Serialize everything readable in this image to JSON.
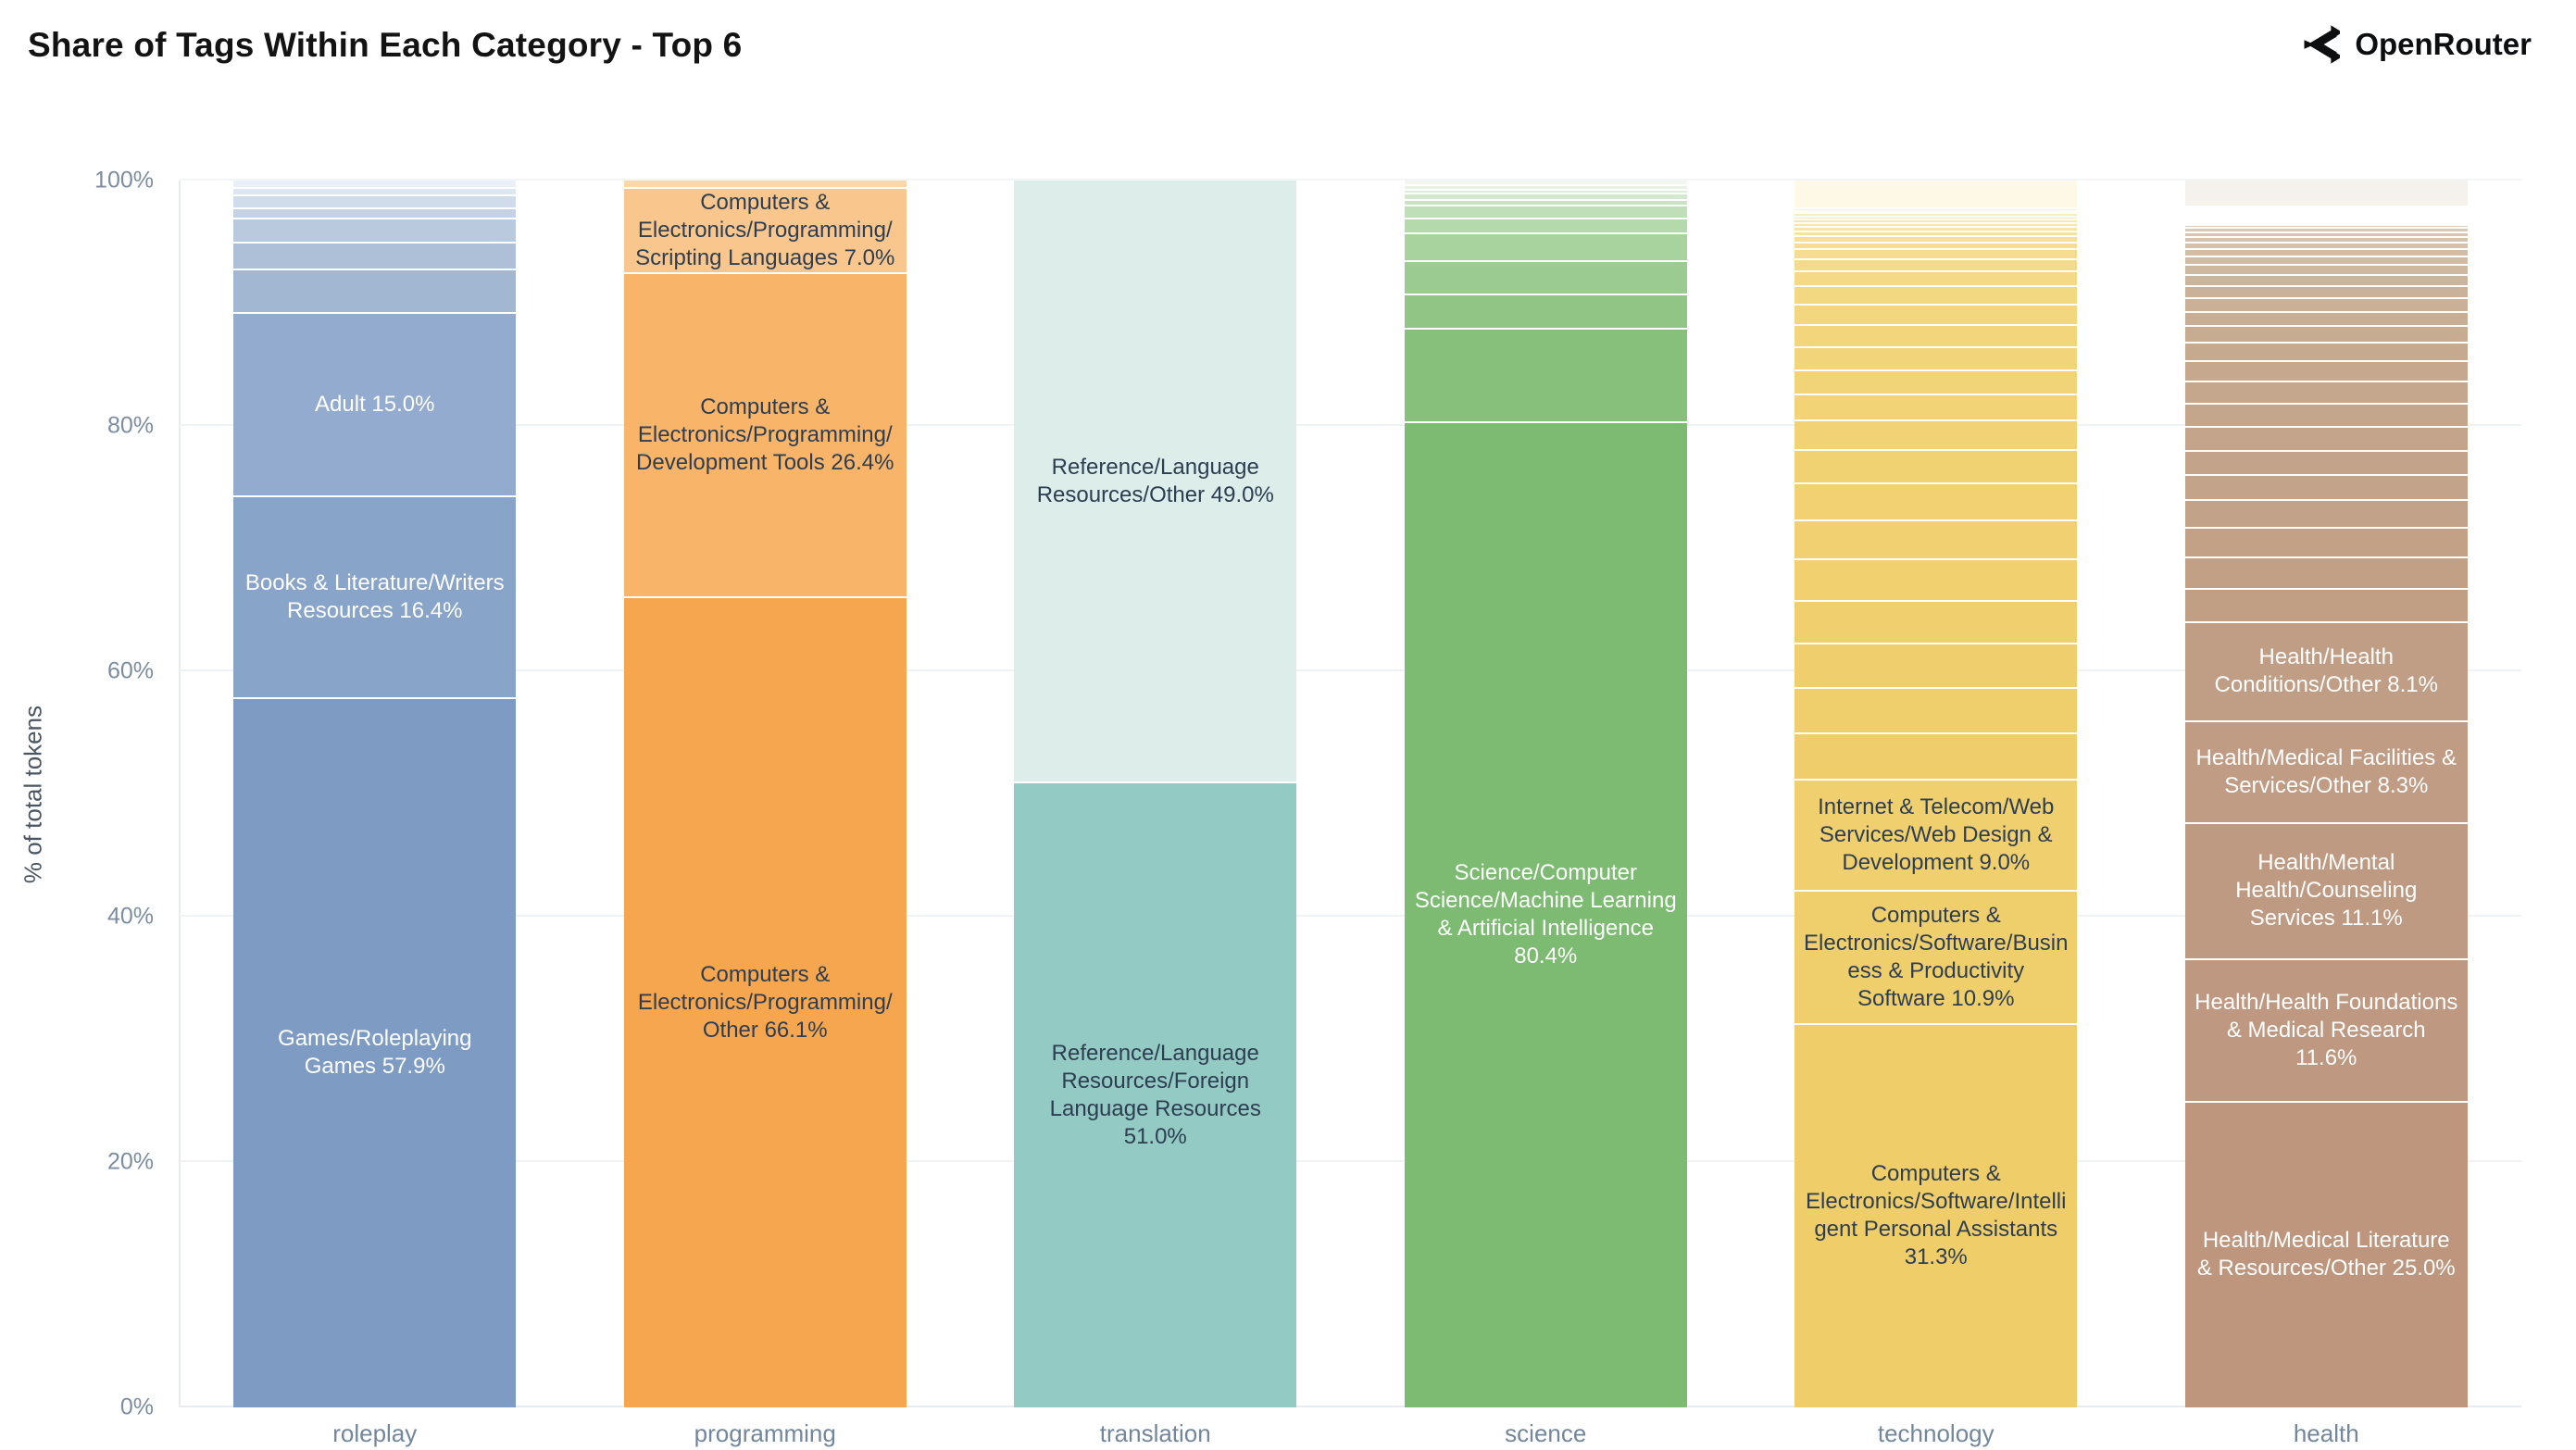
{
  "header": {
    "title": "Share of Tags Within Each Category - Top 6",
    "brand": "OpenRouter"
  },
  "colors": {
    "background": "#ffffff",
    "axis_text": "#7b8da1",
    "category_text": "#72869c",
    "dark_label_text": "#2e3e52",
    "light_label_text": "#ffffff",
    "gridline": "#f0f3f6"
  },
  "chart_data": {
    "type": "bar",
    "stacked": true,
    "orientation": "vertical",
    "title": "Share of Tags Within Each Category - Top 6",
    "xlabel": "",
    "ylabel": "% of total tokens",
    "ylim": [
      0,
      100
    ],
    "grid": true,
    "legend": false,
    "yticks": [
      {
        "v": 0,
        "label": "0%"
      },
      {
        "v": 20,
        "label": "20%"
      },
      {
        "v": 40,
        "label": "40%"
      },
      {
        "v": 60,
        "label": "60%"
      },
      {
        "v": 80,
        "label": "80%"
      },
      {
        "v": 100,
        "label": "100%"
      }
    ],
    "categories": [
      "roleplay",
      "programming",
      "translation",
      "science",
      "technology",
      "health"
    ],
    "note": "segments listed top-to-bottom; value = percent of total tokens; unnamed segments are unlabeled small tags",
    "bars": [
      {
        "category": "roleplay",
        "segments": [
          {
            "value": 0.5,
            "color": "#eaf0f7"
          },
          {
            "value": 0.6,
            "color": "#dde7f1"
          },
          {
            "value": 1.1,
            "color": "#d1dcea"
          },
          {
            "value": 0.8,
            "color": "#c5d2e4"
          },
          {
            "value": 2.0,
            "color": "#b9c9de"
          },
          {
            "value": 2.2,
            "color": "#aec0d8"
          },
          {
            "value": 3.5,
            "color": "#a2b7d2"
          },
          {
            "name": "Adult",
            "value": 15.0,
            "color": "#92abce",
            "text_color": "#ffffff"
          },
          {
            "name": "Books & Literature/Writers Resources",
            "value": 16.4,
            "color": "#89a4c9",
            "text_color": "#ffffff"
          },
          {
            "name": "Games/Roleplaying Games",
            "value": 57.9,
            "color": "#7e9bc4",
            "text_color": "#ffffff"
          }
        ]
      },
      {
        "category": "programming",
        "segments": [
          {
            "value": 0.5,
            "color": "#fbd8ab"
          },
          {
            "name": "Computers & Electronics/Programming/Scripting Languages",
            "value": 7.0,
            "color": "#f9c78d",
            "text_color": "#2e3e52"
          },
          {
            "name": "Computers & Electronics/Programming/Development Tools",
            "value": 26.4,
            "color": "#f8b468",
            "text_color": "#2e3e52"
          },
          {
            "name": "Computers & Electronics/Programming/Other",
            "value": 66.1,
            "color": "#f6a64f",
            "text_color": "#2e3e52"
          }
        ]
      },
      {
        "category": "translation",
        "segments": [
          {
            "name": "Reference/Language Resources/Other",
            "value": 49.0,
            "color": "#dcedea",
            "text_color": "#2e3e52"
          },
          {
            "name": "Reference/Language Resources/Foreign Language Resources",
            "value": 51.0,
            "color": "#93cac3",
            "text_color": "#2e3e52"
          }
        ]
      },
      {
        "category": "science",
        "segments": [
          {
            "value": 0.3,
            "color": "#f2f8f0"
          },
          {
            "value": 0.35,
            "color": "#e8f3e5"
          },
          {
            "value": 0.35,
            "color": "#deeeda"
          },
          {
            "value": 0.5,
            "color": "#d3e9ce"
          },
          {
            "value": 0.5,
            "color": "#c9e4c3"
          },
          {
            "value": 1.0,
            "color": "#bfdfb8"
          },
          {
            "value": 1.2,
            "color": "#b4daac"
          },
          {
            "value": 2.3,
            "color": "#a8d29e"
          },
          {
            "value": 2.7,
            "color": "#9ccb91"
          },
          {
            "value": 2.8,
            "color": "#91c586"
          },
          {
            "value": 7.6,
            "color": "#86c07b"
          },
          {
            "name": "Science/Computer Science/Machine Learning & Artificial Intelligence",
            "value": 80.4,
            "color": "#7cbb71",
            "text_color": "#ffffff"
          }
        ]
      },
      {
        "category": "technology",
        "segments": [
          {
            "value": 2.2,
            "color": "#fdf9e6"
          },
          {
            "value": 0.2,
            "color": "#fbf3d0"
          },
          {
            "value": 0.2,
            "color": "#faf0c7"
          },
          {
            "value": 0.25,
            "color": "#f9edbe"
          },
          {
            "value": 0.25,
            "color": "#f9ebb6"
          },
          {
            "value": 0.3,
            "color": "#f8e8af"
          },
          {
            "value": 0.3,
            "color": "#f7e6a8"
          },
          {
            "value": 0.35,
            "color": "#f7e4a2"
          },
          {
            "value": 0.4,
            "color": "#f6e29c"
          },
          {
            "value": 0.5,
            "color": "#f6e097"
          },
          {
            "value": 0.6,
            "color": "#f5de92"
          },
          {
            "value": 0.8,
            "color": "#f5dc8e"
          },
          {
            "value": 1.0,
            "color": "#f4db8a"
          },
          {
            "value": 1.2,
            "color": "#f4d986"
          },
          {
            "value": 1.5,
            "color": "#f3d882"
          },
          {
            "value": 1.65,
            "color": "#f3d77f"
          },
          {
            "value": 1.8,
            "color": "#f3d67c"
          },
          {
            "value": 1.9,
            "color": "#f2d57a"
          },
          {
            "value": 2.0,
            "color": "#f2d478"
          },
          {
            "value": 2.1,
            "color": "#f2d376"
          },
          {
            "value": 2.4,
            "color": "#f1d274"
          },
          {
            "value": 2.7,
            "color": "#f1d273"
          },
          {
            "value": 3.0,
            "color": "#f1d171"
          },
          {
            "value": 3.2,
            "color": "#f0d070"
          },
          {
            "value": 3.4,
            "color": "#f0d06f"
          },
          {
            "value": 3.5,
            "color": "#f0cf6e"
          },
          {
            "value": 3.6,
            "color": "#efce6d"
          },
          {
            "value": 3.7,
            "color": "#efce6c"
          },
          {
            "value": 3.8,
            "color": "#efcd6b"
          },
          {
            "name": "Internet & Telecom/Web Services/Web Design & Development",
            "value": 9.0,
            "color": "#f0d06e",
            "text_color": "#2e3e52"
          },
          {
            "name": "Computers & Electronics/Software/Business & Productivity Software",
            "value": 10.9,
            "color": "#efcf6c",
            "text_color": "#2e3e52"
          },
          {
            "name": "Computers & Electronics/Software/Intelligent Personal Assistants",
            "value": 31.3,
            "color": "#efcd68",
            "text_color": "#2e3e52"
          }
        ]
      },
      {
        "category": "health",
        "segments": [
          {
            "value": 2.0,
            "color": "#f5f1ec"
          },
          {
            "value": 0.15,
            "color": "#f0e9e3"
          },
          {
            "value": 0.15,
            "color": "#eee6df"
          },
          {
            "value": 0.15,
            "color": "#ece3db"
          },
          {
            "value": 0.15,
            "color": "#eae0d7"
          },
          {
            "value": 0.15,
            "color": "#e8ddd3"
          },
          {
            "value": 0.15,
            "color": "#e6dacf"
          },
          {
            "value": 0.15,
            "color": "#e4d7cb"
          },
          {
            "value": 0.15,
            "color": "#e2d4c7"
          },
          {
            "value": 0.15,
            "color": "#e0d1c3"
          },
          {
            "value": 0.15,
            "color": "#decfbf"
          },
          {
            "value": 0.3,
            "color": "#dcccbb"
          },
          {
            "value": 0.35,
            "color": "#dac9b7"
          },
          {
            "value": 0.4,
            "color": "#d8c6b3"
          },
          {
            "value": 0.45,
            "color": "#d6c3af"
          },
          {
            "value": 0.5,
            "color": "#d4c0ab"
          },
          {
            "value": 0.6,
            "color": "#d2bda7"
          },
          {
            "value": 0.7,
            "color": "#d0bba4"
          },
          {
            "value": 0.8,
            "color": "#ceb8a0"
          },
          {
            "value": 0.9,
            "color": "#ccb59d"
          },
          {
            "value": 1.0,
            "color": "#cab29a"
          },
          {
            "value": 1.1,
            "color": "#c9b097"
          },
          {
            "value": 1.2,
            "color": "#c8ae94"
          },
          {
            "value": 1.35,
            "color": "#c7ac92"
          },
          {
            "value": 1.5,
            "color": "#c6aa90"
          },
          {
            "value": 1.65,
            "color": "#c5a88e"
          },
          {
            "value": 1.8,
            "color": "#c5a78d"
          },
          {
            "value": 1.9,
            "color": "#c4a68c"
          },
          {
            "value": 1.95,
            "color": "#c4a58b"
          },
          {
            "value": 1.95,
            "color": "#c3a48a"
          },
          {
            "value": 2.1,
            "color": "#c3a389"
          },
          {
            "value": 2.25,
            "color": "#c2a288"
          },
          {
            "value": 2.4,
            "color": "#c2a187"
          },
          {
            "value": 2.55,
            "color": "#c1a086"
          },
          {
            "value": 2.7,
            "color": "#c19f85"
          },
          {
            "name": "Health/Health Conditions/Other",
            "value": 8.1,
            "color": "#c09e86",
            "text_color": "#ffffff"
          },
          {
            "name": "Health/Medical Facilities & Services/Other",
            "value": 8.3,
            "color": "#c09c84",
            "text_color": "#ffffff"
          },
          {
            "name": "Health/Mental Health/Counseling Services",
            "value": 11.1,
            "color": "#bf9a82",
            "text_color": "#ffffff"
          },
          {
            "name": "Health/Health Foundations & Medical Research",
            "value": 11.6,
            "color": "#be9880",
            "text_color": "#ffffff"
          },
          {
            "name": "Health/Medical Literature & Resources/Other",
            "value": 25.0,
            "color": "#bd967d",
            "text_color": "#ffffff"
          }
        ]
      }
    ]
  }
}
